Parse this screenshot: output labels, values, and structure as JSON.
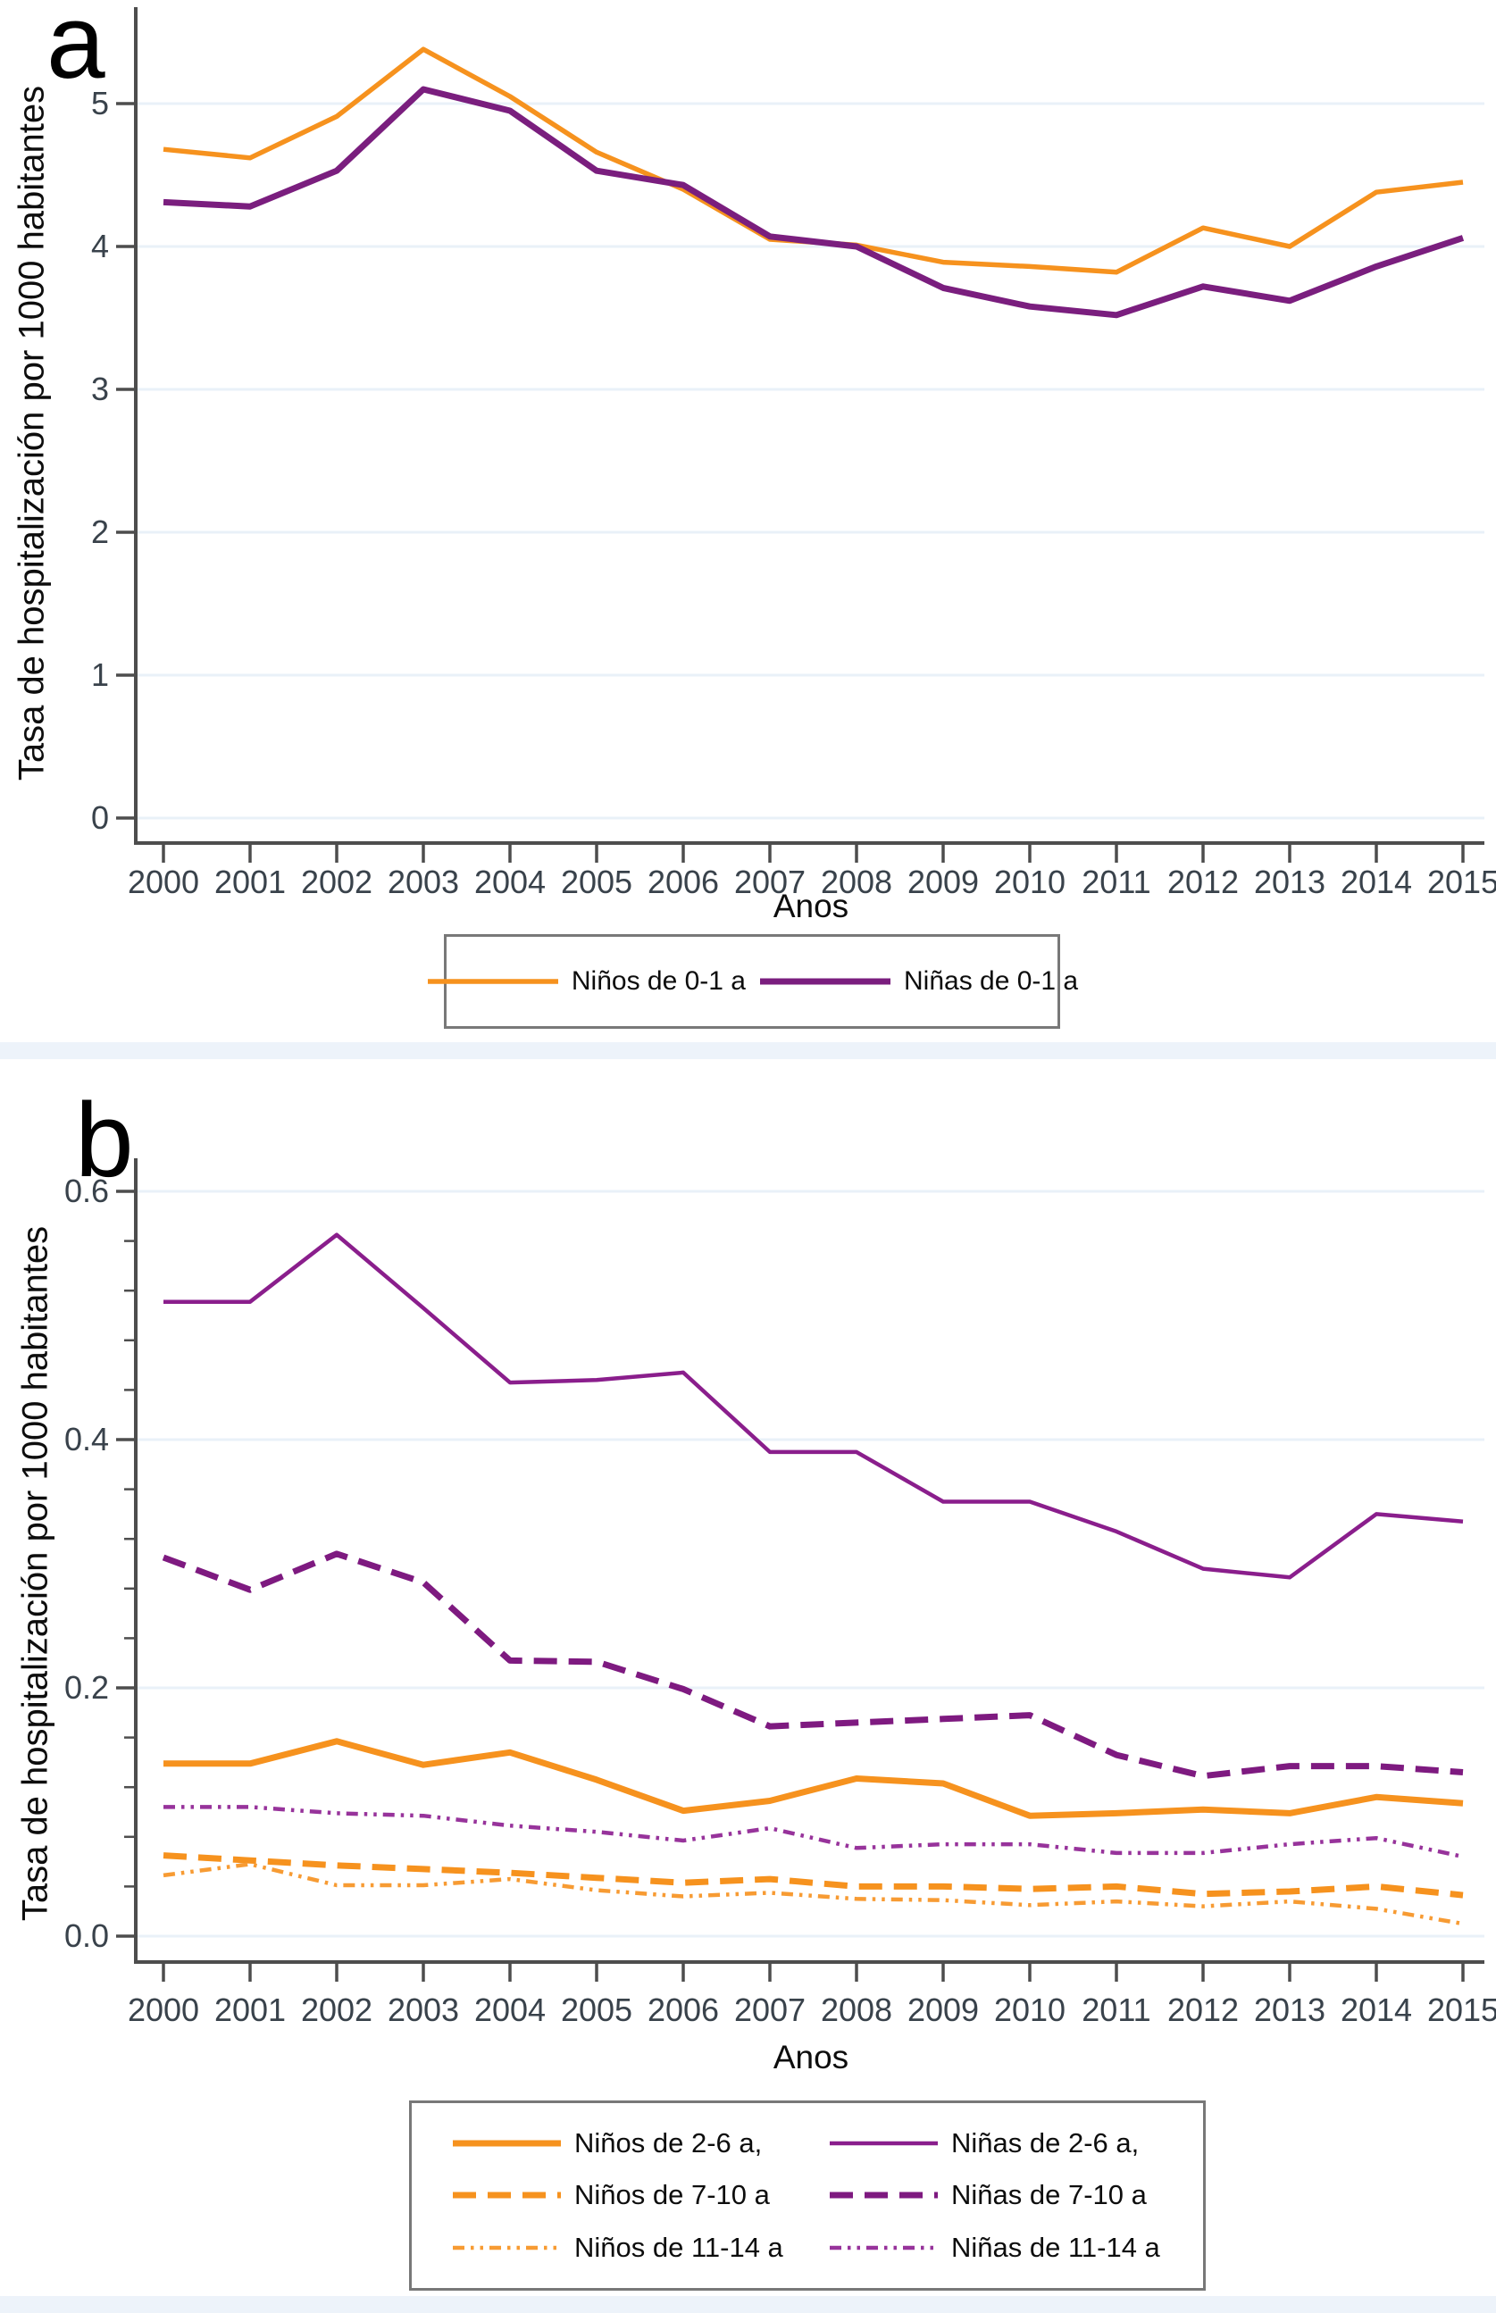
{
  "figure_type": "two-panel line chart, hospitalization rates by year and sex/age group",
  "style": {
    "axis_color": "#4d4d4d",
    "grid_color": "#e9f1f8",
    "tick_label_color": "#39424b",
    "legend_border_color": "#787878",
    "divider_band_color": "#edf3fa",
    "background": "#ffffff"
  },
  "chart_data": [
    {
      "type": "line",
      "title": "a",
      "xlabel": "Anos",
      "ylabel": "Tasa de hospitalización por 1000 habitantes",
      "x": [
        2000,
        2001,
        2002,
        2003,
        2004,
        2005,
        2006,
        2007,
        2008,
        2009,
        2010,
        2011,
        2012,
        2013,
        2014,
        2015
      ],
      "ylim": [
        0,
        5.6
      ],
      "yticks": [
        0,
        1,
        2,
        3,
        4,
        5
      ],
      "ytick_labels": [
        "0",
        "1",
        "2",
        "3",
        "4",
        "5"
      ],
      "grid": true,
      "legend_position": "bottom",
      "series": [
        {
          "name": "Niños de 0-1 a",
          "color": "#F6921E",
          "style": "solid",
          "width": 5.5,
          "values": [
            4.68,
            4.62,
            4.91,
            5.38,
            5.05,
            4.66,
            4.4,
            4.05,
            4.01,
            3.89,
            3.86,
            3.82,
            4.13,
            4.0,
            4.38,
            4.45
          ]
        },
        {
          "name": "Niñas de 0-1 a",
          "color": "#7A1E7E",
          "style": "solid",
          "width": 7,
          "values": [
            4.31,
            4.28,
            4.53,
            5.1,
            4.95,
            4.53,
            4.43,
            4.07,
            4.0,
            3.71,
            3.58,
            3.52,
            3.72,
            3.62,
            3.86,
            4.06
          ]
        }
      ]
    },
    {
      "type": "line",
      "title": "b",
      "xlabel": "Anos",
      "ylabel": "Tasa de hospitalización por 1000 habitantes",
      "x": [
        2000,
        2001,
        2002,
        2003,
        2004,
        2005,
        2006,
        2007,
        2008,
        2009,
        2010,
        2011,
        2012,
        2013,
        2014,
        2015
      ],
      "ylim": [
        0,
        0.62
      ],
      "yticks": [
        0,
        0.2,
        0.4,
        0.6
      ],
      "ytick_labels": [
        "0.0",
        "0.2",
        "0.4",
        "0.6"
      ],
      "minor_ticks": [
        0.04,
        0.08,
        0.12,
        0.16,
        0.24,
        0.28,
        0.32,
        0.36,
        0.44,
        0.48,
        0.52,
        0.56
      ],
      "grid": true,
      "legend_position": "bottom",
      "series": [
        {
          "name": "Niños de 2-6 a,",
          "color": "#F6921E",
          "style": "solid",
          "width": 7,
          "values": [
            0.139,
            0.139,
            0.157,
            0.138,
            0.148,
            0.126,
            0.101,
            0.109,
            0.127,
            0.123,
            0.097,
            0.099,
            0.102,
            0.099,
            0.112,
            0.107
          ]
        },
        {
          "name": "Niñas de 2-6 a,",
          "color": "#8A1E8C",
          "style": "solid",
          "width": 4.5,
          "values": [
            0.511,
            0.511,
            0.565,
            0.506,
            0.446,
            0.448,
            0.454,
            0.39,
            0.39,
            0.35,
            0.35,
            0.326,
            0.296,
            0.289,
            0.34,
            0.334
          ]
        },
        {
          "name": "Niños de 7-10 a",
          "color": "#F6921E",
          "style": "dash",
          "width": 7,
          "values": [
            0.065,
            0.061,
            0.057,
            0.054,
            0.051,
            0.047,
            0.043,
            0.046,
            0.04,
            0.04,
            0.038,
            0.04,
            0.034,
            0.036,
            0.04,
            0.033
          ]
        },
        {
          "name": "Niñas de 7-10 a",
          "color": "#7E1A80",
          "style": "dash",
          "width": 7,
          "values": [
            0.305,
            0.279,
            0.308,
            0.285,
            0.222,
            0.221,
            0.199,
            0.169,
            0.172,
            0.175,
            0.178,
            0.146,
            0.129,
            0.137,
            0.137,
            0.132
          ]
        },
        {
          "name": "Niños de 11-14 a",
          "color": "#F79B33",
          "style": "dashdotdot",
          "width": 4.5,
          "values": [
            0.049,
            0.058,
            0.041,
            0.041,
            0.046,
            0.037,
            0.032,
            0.035,
            0.03,
            0.029,
            0.025,
            0.028,
            0.024,
            0.028,
            0.022,
            0.01
          ]
        },
        {
          "name": "Niñas de 11-14 a",
          "color": "#97339B",
          "style": "dashdotdot",
          "width": 4.5,
          "values": [
            0.104,
            0.104,
            0.099,
            0.097,
            0.089,
            0.084,
            0.077,
            0.087,
            0.071,
            0.074,
            0.074,
            0.067,
            0.067,
            0.074,
            0.079,
            0.064
          ]
        }
      ]
    }
  ]
}
